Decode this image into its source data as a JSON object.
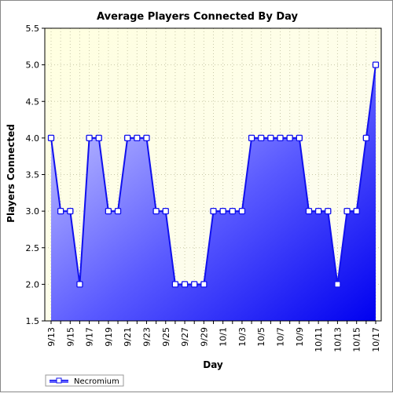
{
  "chart_data": {
    "type": "area",
    "title": "Average Players Connected By Day",
    "xlabel": "Day",
    "ylabel": "Players Connected",
    "ylim": [
      1.5,
      5.5
    ],
    "yticks": [
      "1.5",
      "2.0",
      "2.5",
      "3.0",
      "3.5",
      "4.0",
      "4.5",
      "5.0",
      "5.5"
    ],
    "xtick_labels": [
      "9/13",
      "9/15",
      "9/17",
      "9/19",
      "9/21",
      "9/23",
      "9/25",
      "9/27",
      "9/29",
      "10/1",
      "10/3",
      "10/5",
      "10/7",
      "10/9",
      "10/11",
      "10/13",
      "10/15",
      "10/17"
    ],
    "x": [
      "9/13",
      "9/14",
      "9/15",
      "9/16",
      "9/17",
      "9/18",
      "9/19",
      "9/20",
      "9/21",
      "9/22",
      "9/23",
      "9/24",
      "9/25",
      "9/26",
      "9/27",
      "9/28",
      "9/29",
      "9/30",
      "10/1",
      "10/2",
      "10/3",
      "10/4",
      "10/5",
      "10/6",
      "10/7",
      "10/8",
      "10/9",
      "10/10",
      "10/11",
      "10/12",
      "10/13",
      "10/14",
      "10/15",
      "10/16",
      "10/17"
    ],
    "series": [
      {
        "name": "Necromium",
        "values": [
          4,
          3,
          3,
          2,
          4,
          4,
          3,
          3,
          4,
          4,
          4,
          3,
          3,
          2,
          2,
          2,
          2,
          3,
          3,
          3,
          3,
          4,
          4,
          4,
          4,
          4,
          4,
          3,
          3,
          3,
          2,
          3,
          3,
          4,
          5
        ]
      }
    ],
    "grid": true,
    "legend_position": "bottom-left",
    "colors": {
      "plot_bg_top": "#ffffe8",
      "plot_bg_bottom": "#fdfdf0",
      "line": "#1010ee",
      "fill_light": "#c8c8ff",
      "fill_dark": "#0000f0",
      "marker_fill": "#ffffff"
    }
  }
}
